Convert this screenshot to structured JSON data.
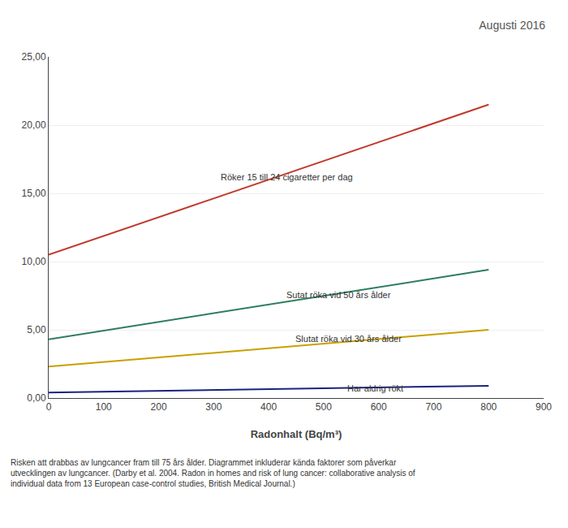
{
  "chart_data": {
    "type": "line",
    "title": "Augusti 2016",
    "x_label": "Radonhalt (Bq/m³)",
    "x": [
      0,
      800
    ],
    "series": [
      {
        "name": "Röker 15 till 24 cigaretter per dag",
        "color": "#c0392b",
        "values": [
          10.5,
          21.5
        ]
      },
      {
        "name": "Sutat röka vid 50 års ålder",
        "color": "#2e7d5e",
        "values": [
          4.3,
          9.4
        ]
      },
      {
        "name": "Slutat röka vid 30 års ålder",
        "color": "#c8a000",
        "values": [
          2.3,
          5.0
        ]
      },
      {
        "name": "Har aldrig rökt",
        "color": "#1a237e",
        "values": [
          0.4,
          0.9
        ]
      }
    ],
    "xlim": [
      0,
      900
    ],
    "xticks": [
      0,
      100,
      200,
      300,
      400,
      500,
      600,
      700,
      800,
      900
    ],
    "ylim": [
      0,
      25
    ],
    "yticks": [
      {
        "value": 0.0,
        "label": "0,00"
      },
      {
        "value": 5.0,
        "label": "5,00"
      },
      {
        "value": 10.0,
        "label": "10,00"
      },
      {
        "value": 15.0,
        "label": "15,00"
      },
      {
        "value": 20.0,
        "label": "20,00"
      },
      {
        "value": 25.0,
        "label": "25,00"
      }
    ],
    "grid": "y",
    "legend": false,
    "annotations": [
      {
        "text": "Röker 15 till 24 cigaretter per dag",
        "x": 310,
        "y": 16.2
      },
      {
        "text": "Sutat röka vid 50 års ålder",
        "x": 430,
        "y": 7.55
      },
      {
        "text": "Slutat röka vid 30 års ålder",
        "x": 445,
        "y": 4.35
      },
      {
        "text": "Har aldrig rökt",
        "x": 540,
        "y": 0.72
      }
    ],
    "footnote": [
      "Risken att drabbas av lungcancer fram till 75 års ålder. Diagrammet inkluderar kända faktorer som påverkar",
      "utvecklingen av lungcancer. (Darby et al. 2004. Radon in homes and risk of lung cancer: collaborative analysis of",
      "individual data from 13 European case-control studies, British Medical Journal.)"
    ]
  }
}
